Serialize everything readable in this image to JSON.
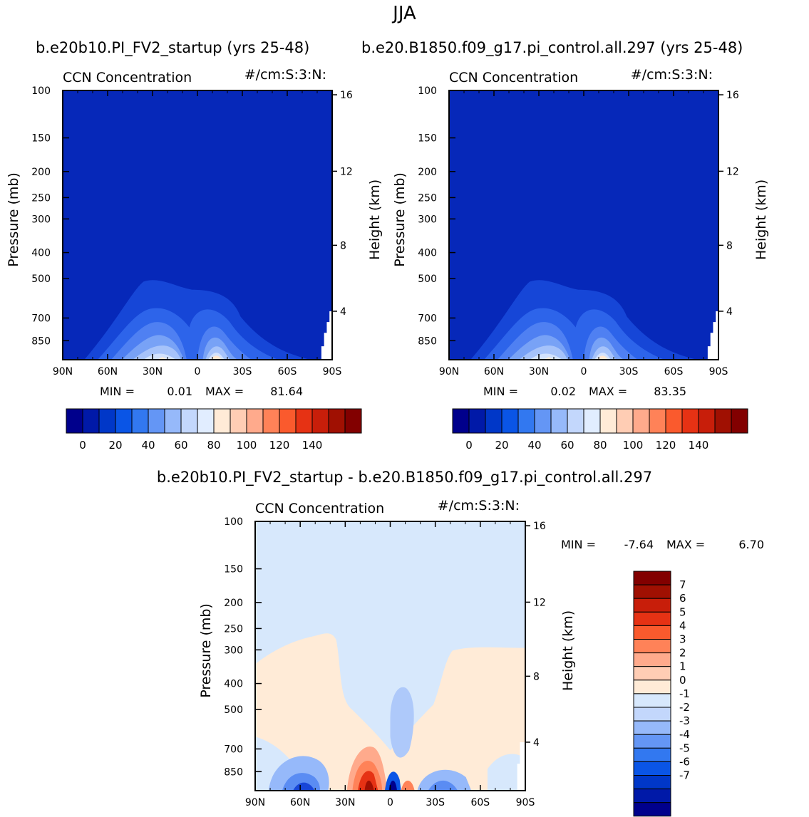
{
  "main_title": "JJA",
  "header_left": "b.e20b10.PI_FV2_startup (yrs 25-48)",
  "header_right": "b.e20.B1850.f09_g17.pi_control.all.297 (yrs 25-48)",
  "diff_title": "b.e20b10.PI_FV2_startup - b.e20.B1850.f09_g17.pi_control.all.297",
  "colors": {
    "abs_palette": [
      "#00008c",
      "#0019a8",
      "#0037c8",
      "#0a55e6",
      "#3278f0",
      "#6496f5",
      "#96b9fa",
      "#c3d7fc",
      "#e1edff",
      "#ffebd7",
      "#ffcdb4",
      "#ffaa8c",
      "#ff8258",
      "#fa5a2d",
      "#e63214",
      "#c81e0a",
      "#a01002",
      "#820000"
    ],
    "diff_palette": [
      "#00008c",
      "#0019a8",
      "#0037c8",
      "#0a55e6",
      "#3278f0",
      "#6496f5",
      "#96b9fa",
      "#c3d7fc",
      "#d7e8fc",
      "#ffebd7",
      "#ffcdb4",
      "#ffaa8c",
      "#ff8258",
      "#fa5a2d",
      "#e63214",
      "#c81e0a",
      "#a01002",
      "#820000"
    ]
  },
  "chart_data": [
    {
      "type": "contour",
      "title": "CCN Concentration",
      "units": "#/cm:S:3:N:",
      "xlabel": "",
      "ylabel": "Pressure (mb)",
      "y2label": "Height (km)",
      "x_ticks": [
        "90N",
        "60N",
        "30N",
        "0",
        "30S",
        "60S",
        "90S"
      ],
      "x_range": [
        90,
        -90
      ],
      "y_ticks": [
        100,
        150,
        200,
        250,
        300,
        400,
        500,
        700,
        850
      ],
      "y_range": [
        100,
        1000
      ],
      "y2_ticks": [
        16,
        12,
        8,
        4
      ],
      "min_label": "MIN =",
      "min_value": "0.01",
      "max_label": "MAX =",
      "max_value": "81.64",
      "colorbar_labels": [
        "0",
        "20",
        "40",
        "60",
        "80",
        "100",
        "120",
        "140"
      ],
      "contour_levels": [
        10,
        20,
        30,
        40,
        50,
        60
      ]
    },
    {
      "type": "contour",
      "title": "CCN Concentration",
      "units": "#/cm:S:3:N:",
      "xlabel": "",
      "ylabel": "Pressure (mb)",
      "y2label": "Height (km)",
      "x_ticks": [
        "90N",
        "60N",
        "30N",
        "0",
        "30S",
        "60S",
        "90S"
      ],
      "x_range": [
        90,
        -90
      ],
      "y_ticks": [
        100,
        150,
        200,
        250,
        300,
        400,
        500,
        700,
        850
      ],
      "y_range": [
        100,
        1000
      ],
      "y2_ticks": [
        16,
        12,
        8,
        4
      ],
      "min_label": "MIN =",
      "min_value": "0.02",
      "max_label": "MAX =",
      "max_value": "83.35",
      "colorbar_labels": [
        "0",
        "20",
        "40",
        "60",
        "80",
        "100",
        "120",
        "140"
      ],
      "contour_levels": [
        10,
        20,
        30,
        40,
        50,
        60
      ]
    },
    {
      "type": "contour",
      "title": "CCN Concentration",
      "units": "#/cm:S:3:N:",
      "xlabel": "",
      "ylabel": "Pressure (mb)",
      "y2label": "Height (km)",
      "x_ticks": [
        "90N",
        "60N",
        "30N",
        "0",
        "30S",
        "60S",
        "90S"
      ],
      "x_range": [
        90,
        -90
      ],
      "y_ticks": [
        100,
        150,
        200,
        250,
        300,
        400,
        500,
        700,
        850
      ],
      "y_range": [
        100,
        1000
      ],
      "y2_ticks": [
        16,
        12,
        8,
        4
      ],
      "min_label": "MIN =",
      "min_value": "-7.64",
      "max_label": "MAX =",
      "max_value": "6.70",
      "colorbar_labels": [
        "7",
        "6",
        "5",
        "4",
        "3",
        "2",
        "1",
        "0",
        "-1",
        "-2",
        "-3",
        "-4",
        "-5",
        "-6",
        "-7"
      ],
      "contour_levels": [
        -7,
        -6,
        -5,
        -4,
        -3,
        -2,
        -1,
        0,
        1,
        2,
        3,
        4,
        5,
        6,
        7
      ]
    }
  ]
}
